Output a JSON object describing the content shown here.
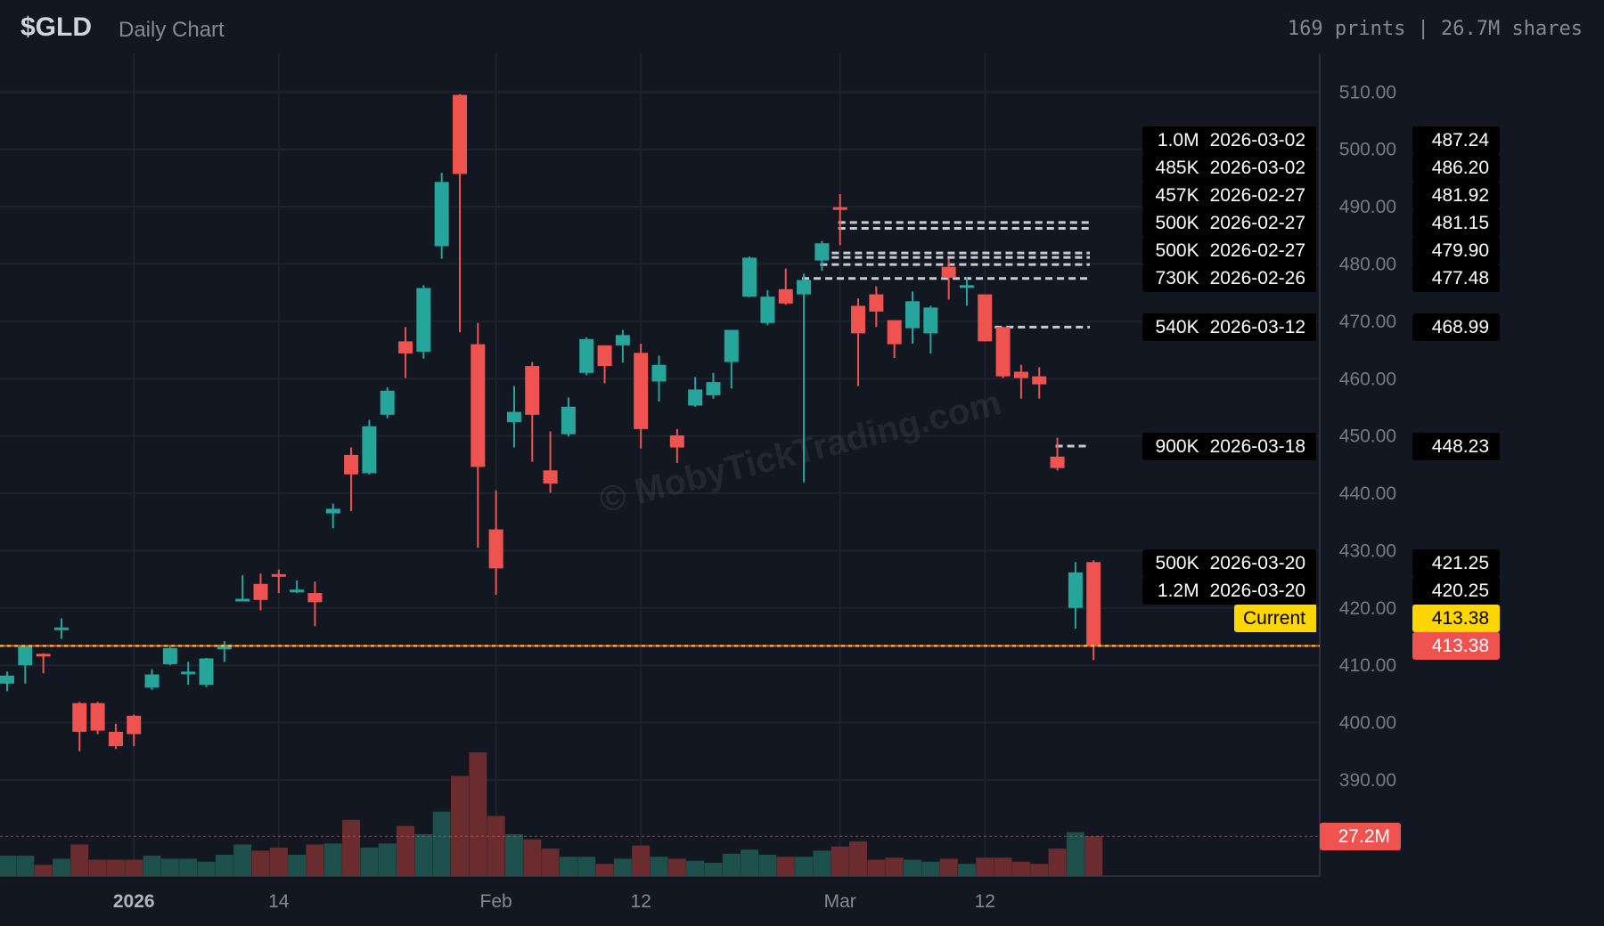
{
  "header": {
    "ticker": "$GLD",
    "subtitle": "Daily Chart",
    "stats": "169 prints | 26.7M shares"
  },
  "watermark": "© MobyTickTrading.com",
  "colors": {
    "up": "#26a69a",
    "down": "#ef5350",
    "current": "#ffd600",
    "background": "#131722"
  },
  "chart_data": {
    "type": "candlestick",
    "title": "",
    "ylim": [
      385,
      515
    ],
    "grid": true,
    "y_ticks": [
      "510.00",
      "500.00",
      "490.00",
      "480.00",
      "470.00",
      "460.00",
      "450.00",
      "440.00",
      "430.00",
      "420.00",
      "410.00",
      "400.00",
      "390.00"
    ],
    "x_ticks": [
      {
        "label": "2026",
        "date": "2026-01-02",
        "bold": true
      },
      {
        "label": "14",
        "date": "2026-01-14",
        "bold": false
      },
      {
        "label": "Feb",
        "date": "2026-02-02",
        "bold": false
      },
      {
        "label": "12",
        "date": "2026-02-12",
        "bold": false
      },
      {
        "label": "Mar",
        "date": "2026-03-02",
        "bold": false
      },
      {
        "label": "12",
        "date": "2026-03-12",
        "bold": false
      }
    ],
    "candles": [
      {
        "d": "2025-12-22",
        "o": 406.8,
        "h": 408.9,
        "l": 405.5,
        "c": 408.2,
        "v": 14
      },
      {
        "d": "2025-12-23",
        "o": 410.0,
        "h": 413.4,
        "l": 406.8,
        "c": 413.4,
        "v": 14
      },
      {
        "d": "2025-12-24",
        "o": 412.0,
        "h": 412.1,
        "l": 408.6,
        "c": 411.6,
        "v": 7.7
      },
      {
        "d": "2025-12-26",
        "o": 416.2,
        "h": 418.2,
        "l": 414.6,
        "c": 416.6,
        "v": 11.9
      },
      {
        "d": "2025-12-29",
        "o": 403.4,
        "h": 403.6,
        "l": 395.0,
        "c": 398.4,
        "v": 21.6
      },
      {
        "d": "2025-12-30",
        "o": 403.4,
        "h": 403.6,
        "l": 398.0,
        "c": 398.6,
        "v": 11.2
      },
      {
        "d": "2025-12-31",
        "o": 398.4,
        "h": 399.8,
        "l": 395.4,
        "c": 395.9,
        "v": 11.2
      },
      {
        "d": "2026-01-02",
        "o": 401.2,
        "h": 401.4,
        "l": 395.9,
        "c": 398.0,
        "v": 11.2
      },
      {
        "d": "2026-01-05",
        "o": 406.1,
        "h": 409.3,
        "l": 405.7,
        "c": 408.4,
        "v": 14
      },
      {
        "d": "2026-01-06",
        "o": 410.2,
        "h": 413.2,
        "l": 410.0,
        "c": 413.0,
        "v": 11.9
      },
      {
        "d": "2026-01-07",
        "o": 408.6,
        "h": 410.6,
        "l": 406.6,
        "c": 408.9,
        "v": 11.9
      },
      {
        "d": "2026-01-08",
        "o": 406.6,
        "h": 411.3,
        "l": 406.2,
        "c": 411.2,
        "v": 9.8
      },
      {
        "d": "2026-01-09",
        "o": 412.8,
        "h": 414.2,
        "l": 410.6,
        "c": 413.6,
        "v": 14.6
      },
      {
        "d": "2026-01-12",
        "o": 421.3,
        "h": 425.7,
        "l": 421.2,
        "c": 421.6,
        "v": 21.6
      },
      {
        "d": "2026-01-13",
        "o": 424.2,
        "h": 426.0,
        "l": 419.6,
        "c": 421.4,
        "v": 17.4
      },
      {
        "d": "2026-01-14",
        "o": 425.9,
        "h": 426.7,
        "l": 422.6,
        "c": 425.6,
        "v": 19.5
      },
      {
        "d": "2026-01-15",
        "o": 422.8,
        "h": 424.8,
        "l": 422.6,
        "c": 423.2,
        "v": 14.6
      },
      {
        "d": "2026-01-16",
        "o": 422.6,
        "h": 424.6,
        "l": 416.8,
        "c": 421.0,
        "v": 21.6
      },
      {
        "d": "2026-01-20",
        "o": 436.5,
        "h": 438.2,
        "l": 433.9,
        "c": 437.3,
        "v": 22.3
      },
      {
        "d": "2026-01-21",
        "o": 446.7,
        "h": 448.0,
        "l": 436.9,
        "c": 443.3,
        "v": 38.4
      },
      {
        "d": "2026-01-22",
        "o": 443.5,
        "h": 452.8,
        "l": 443.3,
        "c": 451.7,
        "v": 19.5
      },
      {
        "d": "2026-01-23",
        "o": 453.7,
        "h": 458.5,
        "l": 453.1,
        "c": 457.9,
        "v": 22.3
      },
      {
        "d": "2026-01-26",
        "o": 466.5,
        "h": 469.0,
        "l": 460.1,
        "c": 464.4,
        "v": 34.2
      },
      {
        "d": "2026-01-27",
        "o": 464.7,
        "h": 476.3,
        "l": 463.5,
        "c": 475.8,
        "v": 28.6
      },
      {
        "d": "2026-01-28",
        "o": 483.1,
        "h": 495.9,
        "l": 480.9,
        "c": 494.3,
        "v": 43.9
      },
      {
        "d": "2026-01-29",
        "o": 509.5,
        "h": 509.6,
        "l": 468.1,
        "c": 495.7,
        "v": 68.3
      },
      {
        "d": "2026-01-30",
        "o": 466.0,
        "h": 469.7,
        "l": 430.5,
        "c": 444.6,
        "v": 84.4
      },
      {
        "d": "2026-02-02",
        "o": 433.7,
        "h": 440.5,
        "l": 422.3,
        "c": 426.9,
        "v": 41.1
      },
      {
        "d": "2026-02-03",
        "o": 452.4,
        "h": 458.7,
        "l": 448.0,
        "c": 454.2,
        "v": 28.6
      },
      {
        "d": "2026-02-04",
        "o": 462.2,
        "h": 462.9,
        "l": 445.5,
        "c": 453.7,
        "v": 25.1
      },
      {
        "d": "2026-02-05",
        "o": 444.0,
        "h": 450.8,
        "l": 440.1,
        "c": 441.7,
        "v": 18.8
      },
      {
        "d": "2026-02-06",
        "o": 450.3,
        "h": 456.7,
        "l": 449.9,
        "c": 455.1,
        "v": 13.2
      },
      {
        "d": "2026-02-09",
        "o": 461.0,
        "h": 467.2,
        "l": 460.6,
        "c": 466.9,
        "v": 13.2
      },
      {
        "d": "2026-02-10",
        "o": 465.8,
        "h": 465.8,
        "l": 459.2,
        "c": 462.2,
        "v": 8.4
      },
      {
        "d": "2026-02-11",
        "o": 465.8,
        "h": 468.5,
        "l": 462.8,
        "c": 467.6,
        "v": 11.9
      },
      {
        "d": "2026-02-12",
        "o": 464.5,
        "h": 466.1,
        "l": 447.8,
        "c": 451.2,
        "v": 20.9
      },
      {
        "d": "2026-02-13",
        "o": 459.5,
        "h": 464.0,
        "l": 456.0,
        "c": 462.4,
        "v": 13.2
      },
      {
        "d": "2026-02-17",
        "o": 450.1,
        "h": 451.2,
        "l": 445.3,
        "c": 448.0,
        "v": 11.9
      },
      {
        "d": "2026-02-18",
        "o": 455.3,
        "h": 460.3,
        "l": 455.1,
        "c": 458.1,
        "v": 10.5
      },
      {
        "d": "2026-02-19",
        "o": 457.1,
        "h": 461.0,
        "l": 456.5,
        "c": 459.4,
        "v": 9.1
      },
      {
        "d": "2026-02-20",
        "o": 462.9,
        "h": 468.5,
        "l": 458.3,
        "c": 468.5,
        "v": 15.3
      },
      {
        "d": "2026-02-23",
        "o": 474.3,
        "h": 481.3,
        "l": 474.2,
        "c": 481.1,
        "v": 18.1
      },
      {
        "d": "2026-02-24",
        "o": 469.7,
        "h": 475.4,
        "l": 469.3,
        "c": 474.3,
        "v": 14.6
      },
      {
        "d": "2026-02-25",
        "o": 475.6,
        "h": 479.2,
        "l": 472.9,
        "c": 473.1,
        "v": 13.2
      },
      {
        "d": "2026-02-26",
        "o": 474.7,
        "h": 478.3,
        "l": 441.9,
        "c": 477.2,
        "v": 13.2
      },
      {
        "d": "2026-02-27",
        "o": 480.6,
        "h": 484.0,
        "l": 478.8,
        "c": 483.6,
        "v": 17.4
      },
      {
        "d": "2026-03-02",
        "o": 489.9,
        "h": 492.2,
        "l": 483.3,
        "c": 489.7,
        "v": 20.2
      },
      {
        "d": "2026-03-03",
        "o": 472.7,
        "h": 474.0,
        "l": 458.7,
        "c": 467.9,
        "v": 23.7
      },
      {
        "d": "2026-03-04",
        "o": 474.7,
        "h": 476.1,
        "l": 469.0,
        "c": 471.7,
        "v": 11.2
      },
      {
        "d": "2026-03-05",
        "o": 470.2,
        "h": 470.2,
        "l": 463.6,
        "c": 466.0,
        "v": 12.6
      },
      {
        "d": "2026-03-06",
        "o": 468.8,
        "h": 475.2,
        "l": 466.1,
        "c": 473.5,
        "v": 11.2
      },
      {
        "d": "2026-03-09",
        "o": 467.9,
        "h": 472.7,
        "l": 464.4,
        "c": 472.4,
        "v": 9.8
      },
      {
        "d": "2026-03-10",
        "o": 479.5,
        "h": 480.9,
        "l": 473.8,
        "c": 477.6,
        "v": 11.9
      },
      {
        "d": "2026-03-11",
        "o": 476.0,
        "h": 477.7,
        "l": 472.7,
        "c": 476.3,
        "v": 8.4
      },
      {
        "d": "2026-03-12",
        "o": 474.7,
        "h": 474.7,
        "l": 466.5,
        "c": 466.5,
        "v": 12.6
      },
      {
        "d": "2026-03-13",
        "o": 469.0,
        "h": 469.0,
        "l": 460.1,
        "c": 460.4,
        "v": 12.6
      },
      {
        "d": "2026-03-16",
        "o": 461.2,
        "h": 462.4,
        "l": 456.5,
        "c": 460.1,
        "v": 9.8
      },
      {
        "d": "2026-03-17",
        "o": 460.4,
        "h": 462.0,
        "l": 456.5,
        "c": 459.0,
        "v": 8.4
      },
      {
        "d": "2026-03-18",
        "o": 446.4,
        "h": 449.7,
        "l": 444.0,
        "c": 444.4,
        "v": 18.8
      },
      {
        "d": "2026-03-19",
        "o": 420.0,
        "h": 428.0,
        "l": 416.4,
        "c": 426.2,
        "v": 30.0
      },
      {
        "d": "2026-03-20",
        "o": 428.0,
        "h": 428.3,
        "l": 410.9,
        "c": 413.38,
        "v": 27.2
      }
    ],
    "block_prints": [
      {
        "size": "1.0M",
        "date": "2026-03-02",
        "price": 487.24
      },
      {
        "size": "485K",
        "date": "2026-03-02",
        "price": 486.2
      },
      {
        "size": "457K",
        "date": "2026-02-27",
        "price": 481.92
      },
      {
        "size": "500K",
        "date": "2026-02-27",
        "price": 481.15
      },
      {
        "size": "500K",
        "date": "2026-02-27",
        "price": 479.9
      },
      {
        "size": "730K",
        "date": "2026-02-26",
        "price": 477.48
      },
      {
        "size": "540K",
        "date": "2026-03-12",
        "price": 468.99
      },
      {
        "size": "900K",
        "date": "2026-03-18",
        "price": 448.23
      },
      {
        "size": "500K",
        "date": "2026-03-20",
        "price": 421.25
      },
      {
        "size": "1.2M",
        "date": "2026-03-20",
        "price": 420.25
      }
    ],
    "current": {
      "label": "Current",
      "price": "413.38"
    },
    "last_price": "413.38",
    "volume_label": "27.2M",
    "volume_unit": "M"
  }
}
